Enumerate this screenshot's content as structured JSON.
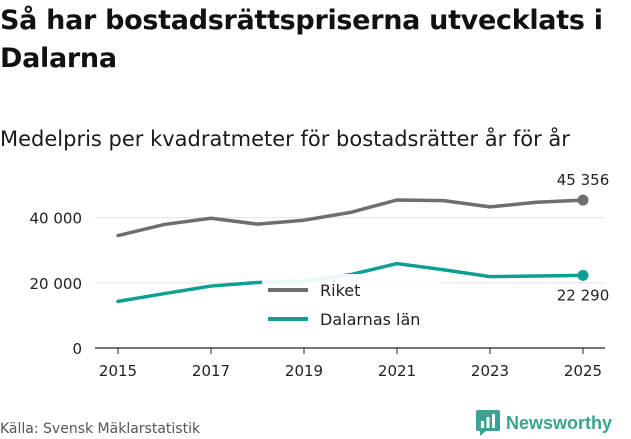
{
  "title": "Så har bostadsrättspriserna utvecklats i Dalarna",
  "subtitle": "Medelpris per kvadratmeter för bostadsrätter år för år",
  "source": "Källa: Svensk Mäklarstatistik",
  "brand": {
    "name": "Newsworthy",
    "color": "#3aa393"
  },
  "chart_data": {
    "type": "line",
    "x": [
      2015,
      2016,
      2017,
      2018,
      2019,
      2020,
      2021,
      2022,
      2023,
      2024,
      2025
    ],
    "series": [
      {
        "name": "Riket",
        "color": "#6e6e6e",
        "values": [
          34500,
          37900,
          39800,
          38000,
          39200,
          41600,
          45400,
          45200,
          43300,
          44700,
          45356
        ]
      },
      {
        "name": "Dalarnas län",
        "color": "#0d9e94",
        "values": [
          14300,
          16700,
          19000,
          20100,
          20500,
          22500,
          25900,
          24000,
          21900,
          22100,
          22290
        ]
      }
    ],
    "end_labels": [
      "45 356",
      "22 290"
    ],
    "y_ticks": [
      0,
      20000,
      40000
    ],
    "y_tick_labels": [
      "0",
      "20 000",
      "40 000"
    ],
    "x_ticks": [
      2015,
      2017,
      2019,
      2021,
      2023,
      2025
    ],
    "x_tick_labels": [
      "2015",
      "2017",
      "2019",
      "2021",
      "2023",
      "2025"
    ],
    "ylim": [
      0,
      50000
    ],
    "xlim": [
      2015,
      2025
    ],
    "legend": {
      "position": "center",
      "entries": [
        "Riket",
        "Dalarnas län"
      ]
    },
    "grid": true
  }
}
